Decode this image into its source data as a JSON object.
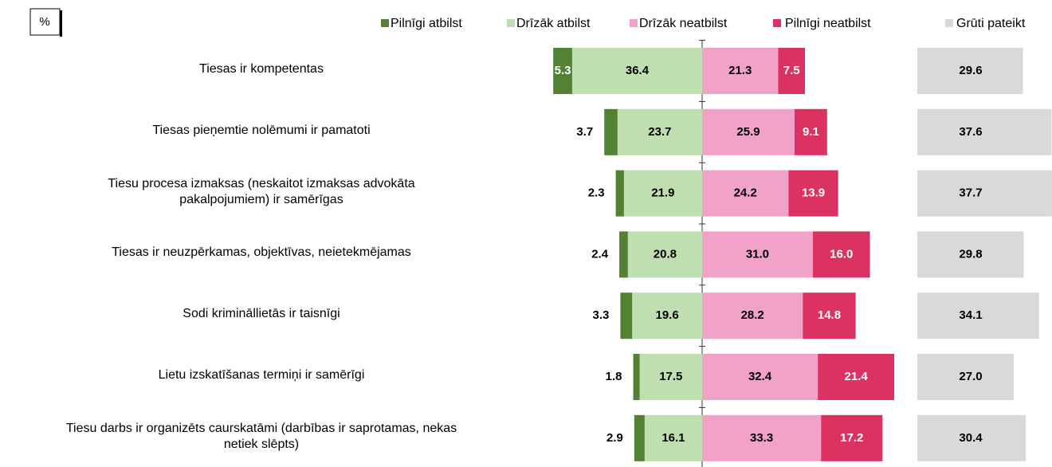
{
  "chart_data": {
    "type": "diverging_bar",
    "unit_label": "%",
    "categories": [
      "Tiesas ir kompetentas",
      "Tiesas pieņemtie nolēmumi ir pamatoti",
      "Tiesu procesa izmaksas (neskaitot izmaksas advokāta\npakalpojumiem) ir samērīgas",
      "Tiesas ir neuzpērkamas, objektīvas, neietekmējamas",
      "Sodi krimināllietās ir taisnīgi",
      "Lietu izskatīšanas termiņi ir samērīgi",
      "Tiesu darbs ir organizēts caurskatāmi (darbības ir saprotamas, nekas\nnetiek slēpts)"
    ],
    "series": [
      {
        "name": "Pilnīgi atbilst",
        "color": "#548235",
        "values": [
          5.3,
          3.7,
          2.3,
          2.4,
          3.3,
          1.8,
          2.9
        ]
      },
      {
        "name": "Drīzāk atbilst",
        "color": "#c0dfb0",
        "values": [
          36.4,
          23.7,
          21.9,
          20.8,
          19.6,
          17.5,
          16.1
        ],
        "value_labels": [
          "36.4",
          "23.7",
          "21.9",
          "20.8",
          "19.6",
          "17.5",
          "16.1"
        ]
      },
      {
        "name": "Drīzāk neatbilst",
        "color": "#f2a2c8",
        "values": [
          21.3,
          25.9,
          24.2,
          31.0,
          28.2,
          32.4,
          33.3
        ],
        "value_labels": [
          "21.3",
          "25.9",
          "24.2",
          "31.0",
          "28.2",
          "32.4",
          "33.3"
        ]
      },
      {
        "name": "Pilnīgi neatbilst",
        "color": "#db3262",
        "values": [
          7.5,
          9.1,
          13.9,
          16.0,
          14.8,
          21.4,
          17.2
        ],
        "value_labels": [
          "7.5",
          "9.1",
          "13.9",
          "16.0",
          "14.8",
          "21.4",
          "17.2"
        ]
      },
      {
        "name": "Grūti pateikt",
        "color": "#d9d9d9",
        "values": [
          29.6,
          37.6,
          37.7,
          29.8,
          34.1,
          27.0,
          30.4
        ],
        "value_labels": [
          "29.6",
          "37.6",
          "37.7",
          "29.8",
          "34.1",
          "27.0",
          "30.4"
        ]
      }
    ]
  }
}
